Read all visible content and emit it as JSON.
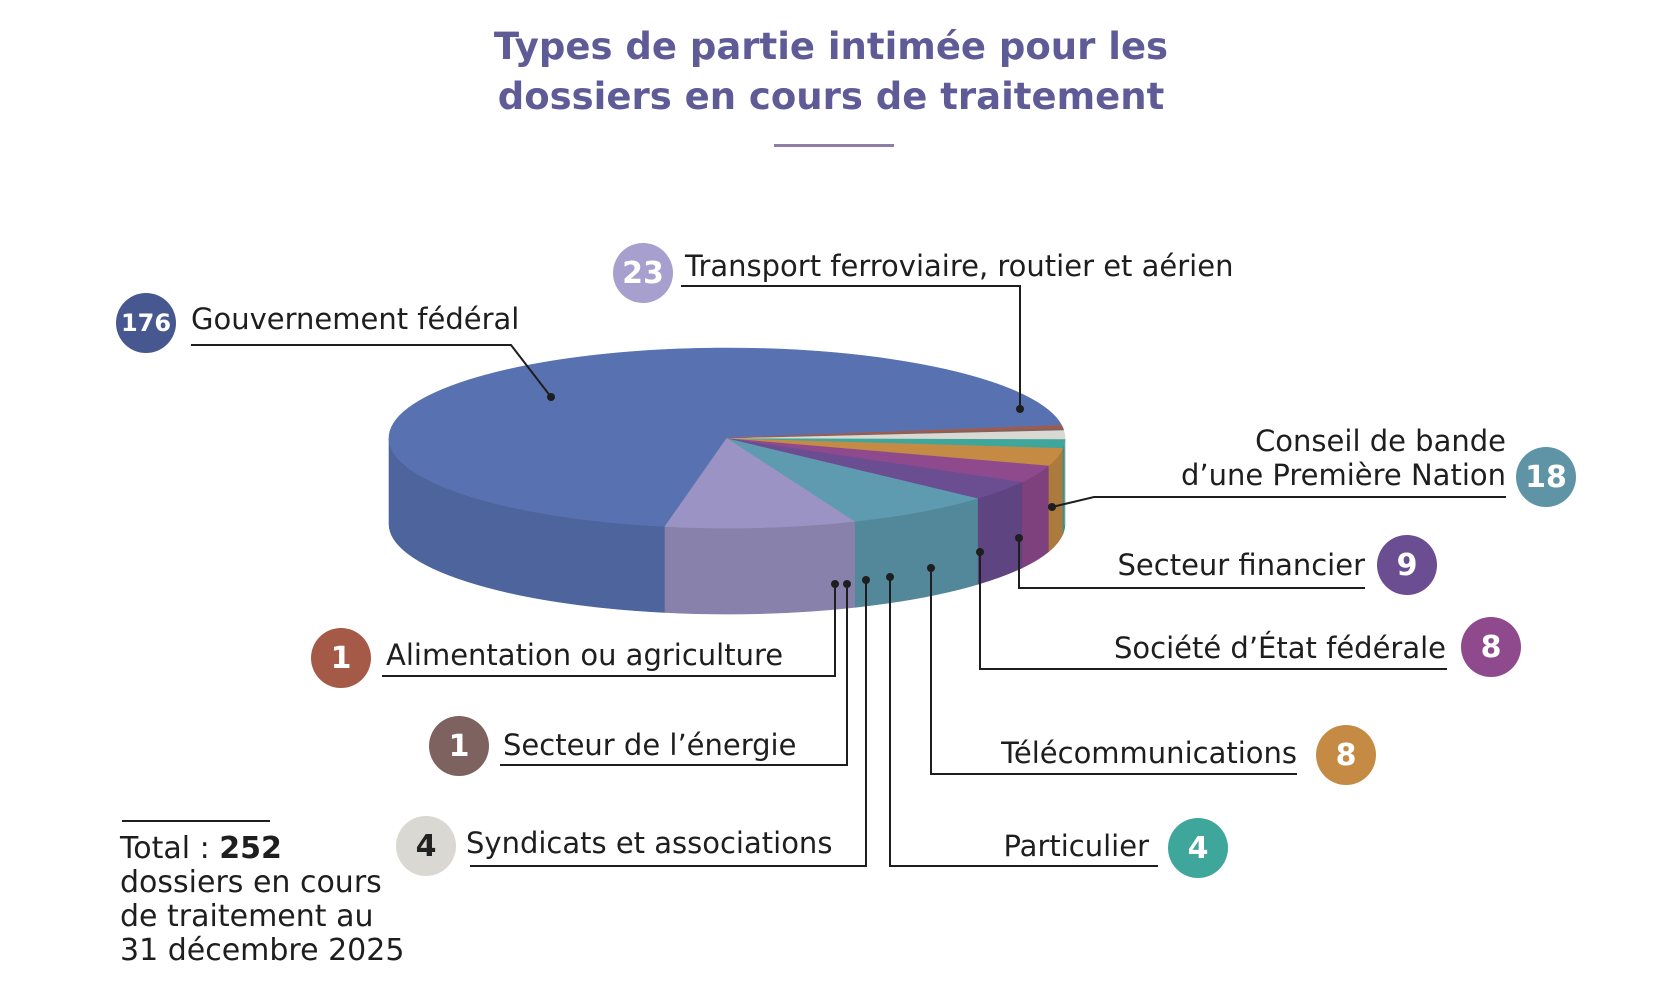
{
  "title_line1": "Types de partie intimée pour les",
  "title_line2": "dossiers en cours de traitement",
  "total": {
    "prefix": "Total : ",
    "value": "252",
    "line2": "dossiers en cours",
    "line3": "de traitement au",
    "line4": "31 décembre 2025"
  },
  "chart_data": {
    "type": "pie",
    "title": "Types de partie intimée pour les dossiers en cours de traitement",
    "total": 252,
    "slices": [
      {
        "label": "Gouvernement fédéral",
        "value": 176,
        "color": "#5872b1"
      },
      {
        "label": "Transport ferroviaire, routier et aérien",
        "value": 23,
        "color": "#9b93c3"
      },
      {
        "label": "Conseil de bande",
        "label_line2": "d’une Première Nation",
        "value": 18,
        "color": "#5e9ab0"
      },
      {
        "label": "Secteur financier",
        "value": 9,
        "color": "#6b4d92"
      },
      {
        "label": "Société d’État fédérale",
        "value": 8,
        "color": "#8f4a8e"
      },
      {
        "label": "Télécommunications",
        "value": 8,
        "color": "#c58b45"
      },
      {
        "label": "Particulier",
        "value": 4,
        "color": "#3ea69b"
      },
      {
        "label": "Syndicats et associations",
        "value": 4,
        "color": "#d9d8d2"
      },
      {
        "label": "Secteur de l’énergie",
        "value": 1,
        "color": "#7d625f"
      },
      {
        "label": "Alimentation ou agriculture",
        "value": 1,
        "color": "#a55a48"
      }
    ]
  }
}
